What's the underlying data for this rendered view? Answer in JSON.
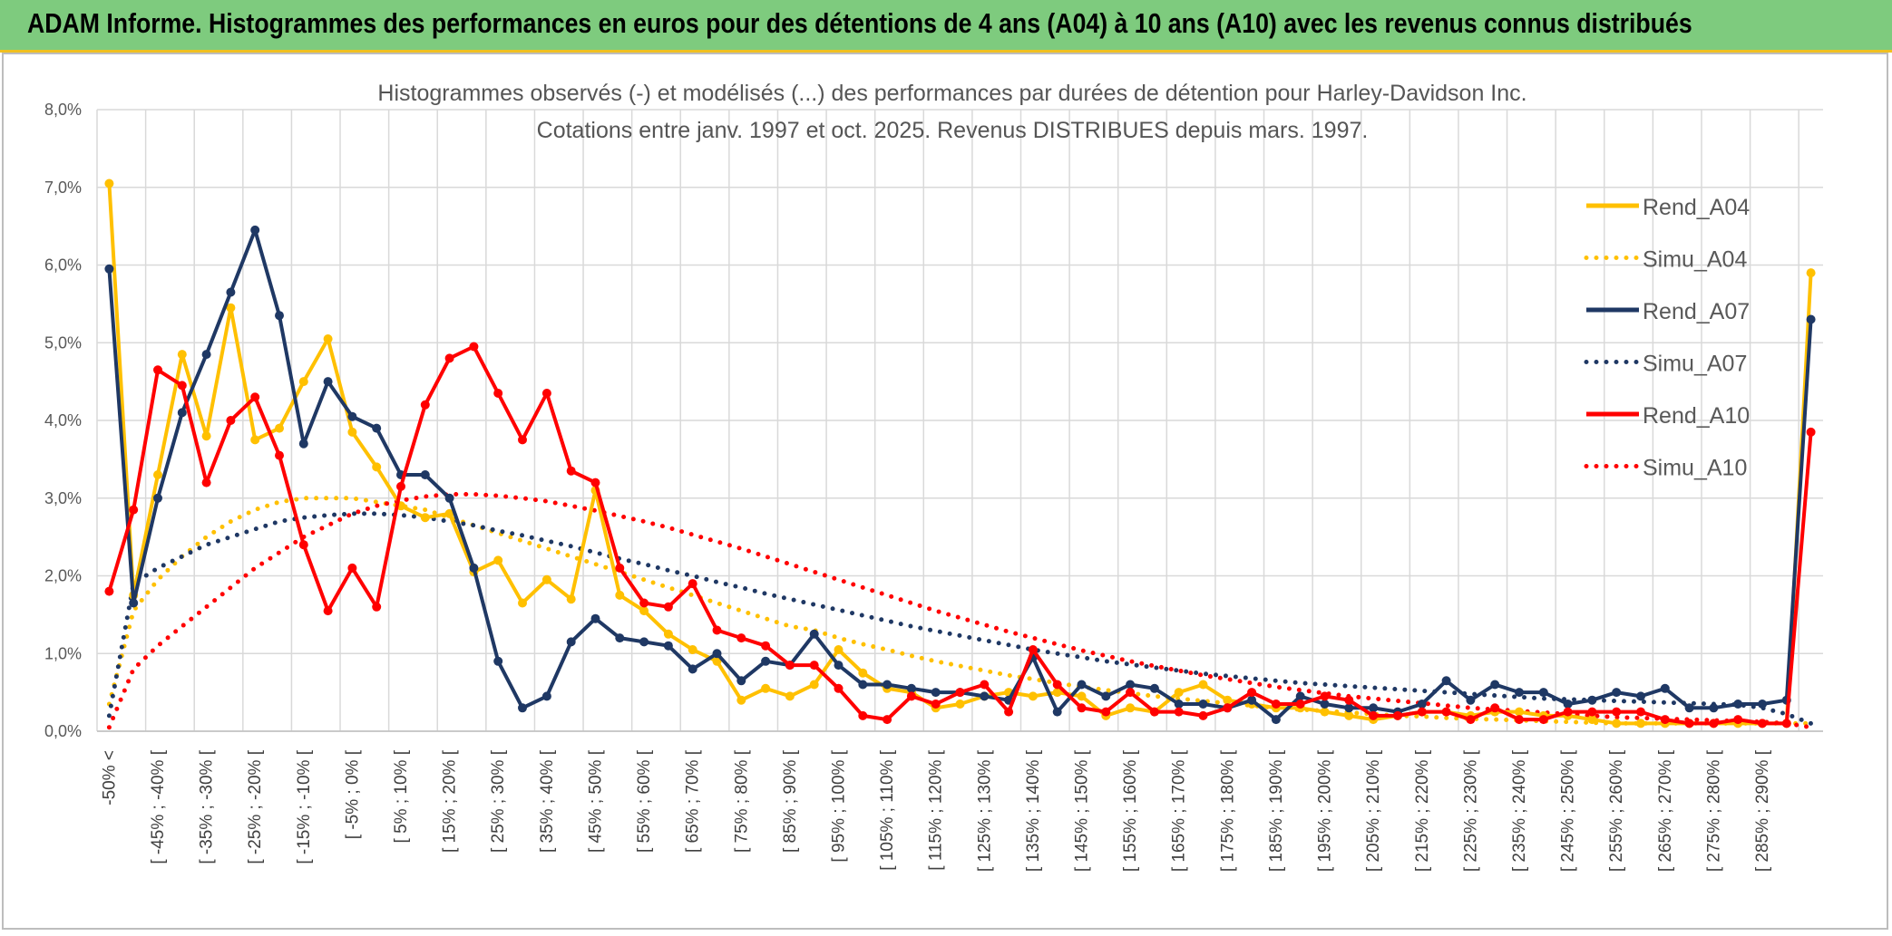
{
  "header": {
    "title": "ADAM Informe. Histogrammes des performances en euros pour des détentions de 4 ans (A04) à 10 ans (A10) avec les revenus connus distribués"
  },
  "colors": {
    "banner": "#7ecb7e",
    "banner_border": "#f0c020",
    "A04": "#ffc000",
    "A07": "#1f3864",
    "A10": "#ff0000",
    "grid": "#d9d9d9"
  },
  "chart_data": {
    "type": "line",
    "title": [
      "Histogrammes observés (-) et modélisés (...) des performances par durées de détention pour Harley-Davidson Inc.",
      "Cotations entre janv. 1997 et oct. 2025. Revenus DISTRIBUES depuis mars. 1997."
    ],
    "ylim": [
      0,
      8
    ],
    "y_ticks": [
      "0,0%",
      "1,0%",
      "2,0%",
      "3,0%",
      "4,0%",
      "5,0%",
      "6,0%",
      "7,0%",
      "8,0%"
    ],
    "x_labels": [
      "-50% <",
      "[ -45% ; -40% [",
      "[ -35% ; -30% [",
      "[ -25% ; -20% [",
      "[ -15% ; -10% [",
      "[ -5% ; 0% [",
      "[ 5% ; 10% [",
      "[ 15% ; 20% [",
      "[ 25% ; 30% [",
      "[ 35% ; 40% [",
      "[ 45% ; 50% [",
      "[ 55% ; 60% [",
      "[ 65% ; 70% [",
      "[ 75% ; 80% [",
      "[ 85% ; 90% [",
      "[ 95% ; 100% [",
      "[ 105% ; 110% [",
      "[ 115% ; 120% [",
      "[ 125% ; 130% [",
      "[ 135% ; 140% [",
      "[ 145% ; 150% [",
      "[ 155% ; 160% [",
      "[ 165% ; 170% [",
      "[ 175% ; 180% [",
      "[ 185% ; 190% [",
      "[ 195% ; 200% [",
      "[ 205% ; 210% [",
      "[ 215% ; 220% [",
      "[ 225% ; 230% [",
      "[ 235% ; 240% [",
      "[ 245% ; 250% [",
      "[ 255% ; 260% [",
      "[ 265% ; 270% [",
      "[ 275% ; 280% [",
      "[ 285% ; 290% ["
    ],
    "n_categories": 71,
    "series": [
      {
        "name": "Rend_A04",
        "style": "solid",
        "color": "#ffc000",
        "values": [
          7.05,
          1.75,
          3.3,
          4.85,
          3.8,
          5.45,
          3.75,
          3.9,
          4.5,
          5.05,
          3.85,
          3.4,
          2.9,
          2.75,
          2.8,
          2.05,
          2.2,
          1.65,
          1.95,
          1.7,
          3.1,
          1.75,
          1.55,
          1.25,
          1.05,
          0.9,
          0.4,
          0.55,
          0.45,
          0.6,
          1.05,
          0.75,
          0.55,
          0.5,
          0.3,
          0.35,
          0.45,
          0.5,
          0.45,
          0.5,
          0.45,
          0.2,
          0.3,
          0.25,
          0.5,
          0.6,
          0.4,
          0.35,
          0.3,
          0.3,
          0.25,
          0.2,
          0.15,
          0.2,
          0.25,
          0.25,
          0.2,
          0.25,
          0.25,
          0.2,
          0.2,
          0.15,
          0.1,
          0.1,
          0.1,
          0.1,
          0.1,
          0.1,
          0.1,
          0.1,
          5.9
        ]
      },
      {
        "name": "Simu_A04",
        "style": "dotted",
        "color": "#ffc000",
        "values": [
          0.35,
          1.55,
          1.95,
          2.25,
          2.5,
          2.7,
          2.85,
          2.95,
          3.0,
          3.0,
          3.0,
          2.95,
          2.9,
          2.85,
          2.75,
          2.65,
          2.55,
          2.45,
          2.35,
          2.25,
          2.15,
          2.05,
          1.95,
          1.85,
          1.75,
          1.65,
          1.55,
          1.45,
          1.35,
          1.3,
          1.2,
          1.12,
          1.05,
          0.97,
          0.9,
          0.84,
          0.78,
          0.72,
          0.67,
          0.62,
          0.57,
          0.53,
          0.49,
          0.45,
          0.42,
          0.39,
          0.36,
          0.33,
          0.3,
          0.28,
          0.26,
          0.24,
          0.22,
          0.2,
          0.19,
          0.17,
          0.16,
          0.15,
          0.14,
          0.13,
          0.12,
          0.11,
          0.1,
          0.1,
          0.1,
          0.1,
          0.1,
          0.1,
          0.1,
          0.1,
          0.1
        ]
      },
      {
        "name": "Rend_A07",
        "style": "solid",
        "color": "#1f3864",
        "values": [
          5.95,
          1.65,
          3.0,
          4.1,
          4.85,
          5.65,
          6.45,
          5.35,
          3.7,
          4.5,
          4.05,
          3.9,
          3.3,
          3.3,
          3.0,
          2.1,
          0.9,
          0.3,
          0.45,
          1.15,
          1.45,
          1.2,
          1.15,
          1.1,
          0.8,
          1.0,
          0.65,
          0.9,
          0.85,
          1.25,
          0.85,
          0.6,
          0.6,
          0.55,
          0.5,
          0.5,
          0.45,
          0.4,
          0.95,
          0.25,
          0.6,
          0.45,
          0.6,
          0.55,
          0.35,
          0.35,
          0.3,
          0.4,
          0.15,
          0.45,
          0.35,
          0.3,
          0.3,
          0.25,
          0.35,
          0.65,
          0.4,
          0.6,
          0.5,
          0.5,
          0.35,
          0.4,
          0.5,
          0.45,
          0.55,
          0.3,
          0.3,
          0.35,
          0.35,
          0.4,
          5.3
        ]
      },
      {
        "name": "Simu_A07",
        "style": "dotted",
        "color": "#1f3864",
        "values": [
          0.2,
          1.9,
          2.1,
          2.25,
          2.4,
          2.5,
          2.6,
          2.7,
          2.75,
          2.78,
          2.8,
          2.8,
          2.78,
          2.75,
          2.7,
          2.65,
          2.58,
          2.52,
          2.45,
          2.38,
          2.3,
          2.22,
          2.15,
          2.07,
          2.0,
          1.92,
          1.85,
          1.77,
          1.7,
          1.63,
          1.56,
          1.49,
          1.42,
          1.35,
          1.29,
          1.23,
          1.17,
          1.11,
          1.05,
          1.0,
          0.95,
          0.9,
          0.86,
          0.82,
          0.78,
          0.74,
          0.71,
          0.68,
          0.65,
          0.62,
          0.6,
          0.58,
          0.56,
          0.54,
          0.52,
          0.5,
          0.48,
          0.46,
          0.44,
          0.42,
          0.41,
          0.4,
          0.39,
          0.38,
          0.37,
          0.36,
          0.35,
          0.34,
          0.3,
          0.22,
          0.1
        ]
      },
      {
        "name": "Rend_A10",
        "style": "solid",
        "color": "#ff0000",
        "values": [
          1.8,
          2.85,
          4.65,
          4.45,
          3.2,
          4.0,
          4.3,
          3.55,
          2.4,
          1.55,
          2.1,
          1.6,
          3.15,
          4.2,
          4.8,
          4.95,
          4.35,
          3.75,
          4.35,
          3.35,
          3.2,
          2.1,
          1.65,
          1.6,
          1.9,
          1.3,
          1.2,
          1.1,
          0.85,
          0.85,
          0.55,
          0.2,
          0.15,
          0.45,
          0.35,
          0.5,
          0.6,
          0.25,
          1.05,
          0.6,
          0.3,
          0.25,
          0.5,
          0.25,
          0.25,
          0.2,
          0.3,
          0.5,
          0.35,
          0.35,
          0.45,
          0.4,
          0.2,
          0.2,
          0.25,
          0.25,
          0.15,
          0.3,
          0.15,
          0.15,
          0.25,
          0.25,
          0.25,
          0.25,
          0.15,
          0.1,
          0.1,
          0.15,
          0.1,
          0.1,
          3.85
        ]
      },
      {
        "name": "Simu_A10",
        "style": "dotted",
        "color": "#ff0000",
        "values": [
          0.05,
          0.8,
          1.1,
          1.35,
          1.6,
          1.85,
          2.1,
          2.3,
          2.5,
          2.65,
          2.8,
          2.9,
          2.97,
          3.02,
          3.05,
          3.05,
          3.03,
          3.0,
          2.96,
          2.9,
          2.84,
          2.77,
          2.7,
          2.62,
          2.53,
          2.44,
          2.35,
          2.25,
          2.15,
          2.05,
          1.95,
          1.85,
          1.75,
          1.65,
          1.55,
          1.46,
          1.37,
          1.28,
          1.2,
          1.12,
          1.04,
          0.97,
          0.9,
          0.84,
          0.78,
          0.72,
          0.67,
          0.62,
          0.57,
          0.53,
          0.49,
          0.45,
          0.42,
          0.39,
          0.36,
          0.33,
          0.3,
          0.28,
          0.26,
          0.24,
          0.22,
          0.2,
          0.18,
          0.17,
          0.16,
          0.15,
          0.14,
          0.13,
          0.12,
          0.1,
          0.05
        ]
      }
    ],
    "legend_position": "right"
  }
}
